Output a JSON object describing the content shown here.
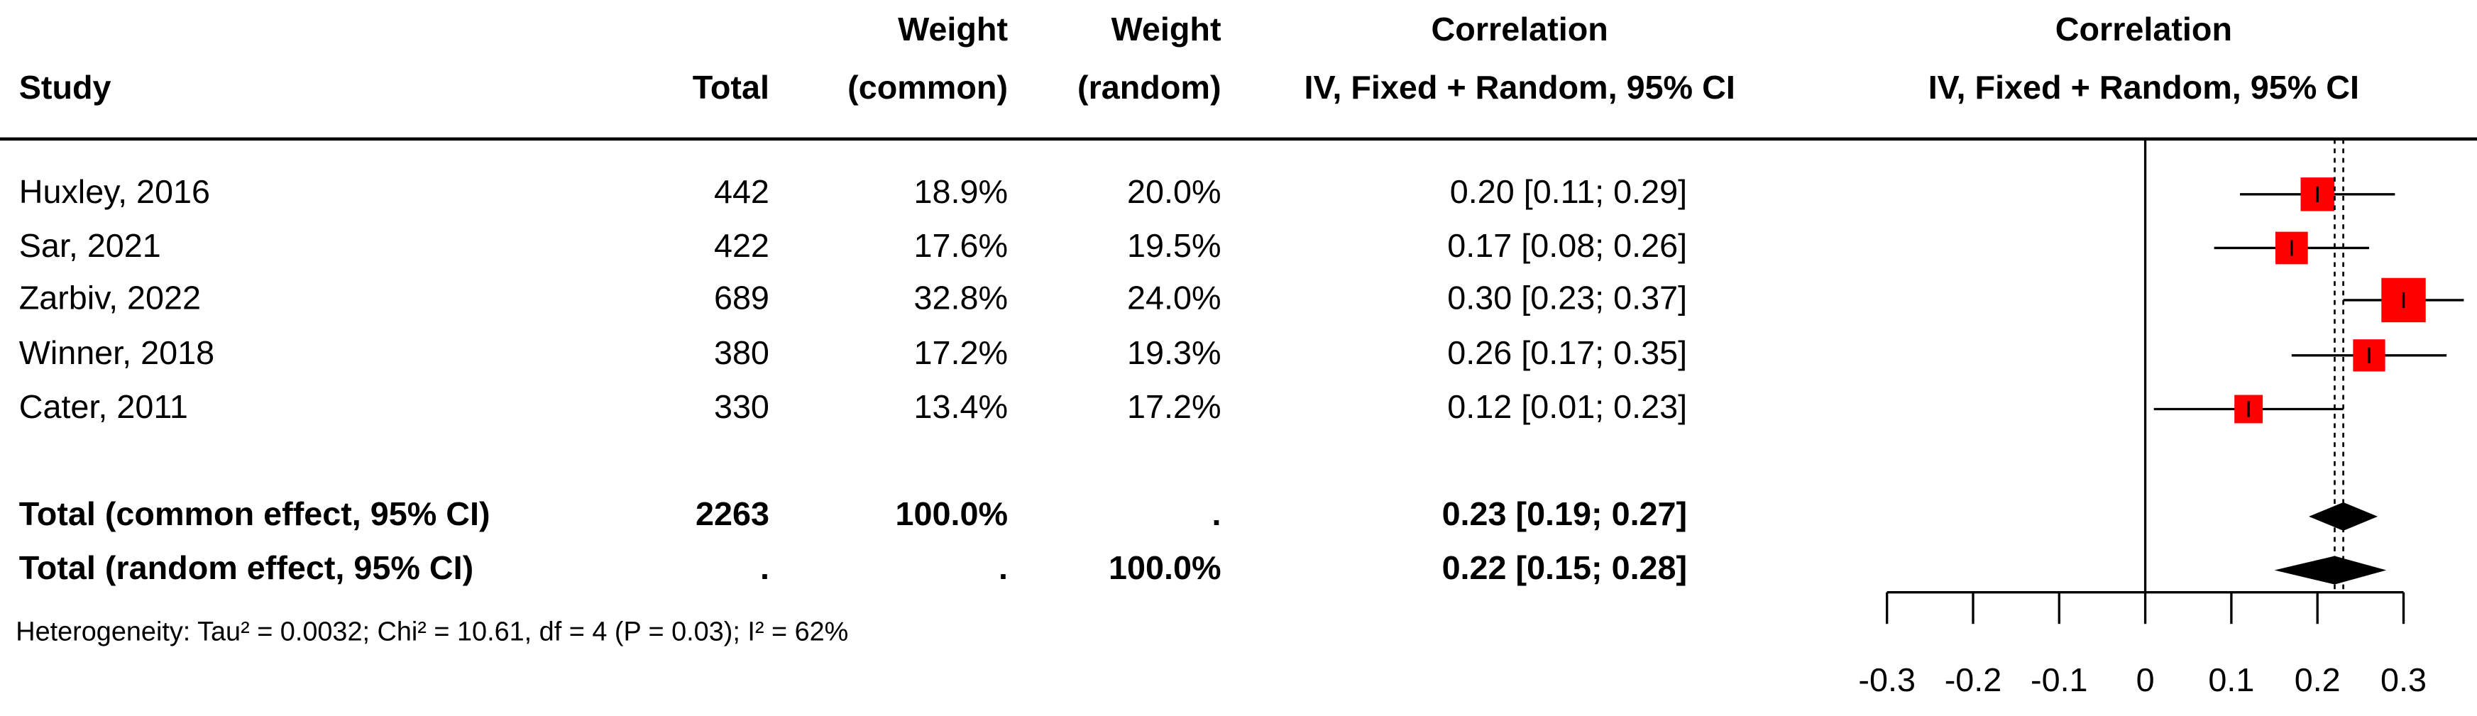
{
  "chart_data": {
    "type": "forest",
    "columns": {
      "study": "Study",
      "total": "Total",
      "weight_common": [
        "Weight",
        "(common)"
      ],
      "weight_random": [
        "Weight",
        "(random)"
      ],
      "ci": [
        "Correlation",
        "IV, Fixed + Random, 95% CI"
      ]
    },
    "plot_header": [
      "Correlation",
      "IV, Fixed + Random, 95% CI"
    ],
    "studies": [
      {
        "name": "Huxley, 2016",
        "total": 442,
        "weight_common": 18.9,
        "weight_common_label": "18.9%",
        "weight_random": 20.0,
        "weight_random_label": "20.0%",
        "estimate": 0.2,
        "lower": 0.11,
        "upper": 0.29,
        "ci_label": "0.20 [0.11; 0.29]"
      },
      {
        "name": "Sar, 2021",
        "total": 422,
        "weight_common": 17.6,
        "weight_common_label": "17.6%",
        "weight_random": 19.5,
        "weight_random_label": "19.5%",
        "estimate": 0.17,
        "lower": 0.08,
        "upper": 0.26,
        "ci_label": "0.17 [0.08; 0.26]"
      },
      {
        "name": "Zarbiv, 2022",
        "total": 689,
        "weight_common": 32.8,
        "weight_common_label": "32.8%",
        "weight_random": 24.0,
        "weight_random_label": "24.0%",
        "estimate": 0.3,
        "lower": 0.23,
        "upper": 0.37,
        "ci_label": "0.30 [0.23; 0.37]"
      },
      {
        "name": "Winner, 2018",
        "total": 380,
        "weight_common": 17.2,
        "weight_common_label": "17.2%",
        "weight_random": 19.3,
        "weight_random_label": "19.3%",
        "estimate": 0.26,
        "lower": 0.17,
        "upper": 0.35,
        "ci_label": "0.26 [0.17; 0.35]"
      },
      {
        "name": "Cater, 2011",
        "total": 330,
        "weight_common": 13.4,
        "weight_common_label": "13.4%",
        "weight_random": 17.2,
        "weight_random_label": "17.2%",
        "estimate": 0.12,
        "lower": 0.01,
        "upper": 0.23,
        "ci_label": "0.12 [0.01; 0.23]"
      }
    ],
    "pooled": [
      {
        "name": "Total (common effect, 95% CI)",
        "total": 2263,
        "weight_common_label": "100.0%",
        "weight_random_label": ".",
        "estimate": 0.23,
        "lower": 0.19,
        "upper": 0.27,
        "ci_label": "0.23 [0.19; 0.27]"
      },
      {
        "name": "Total (random effect, 95% CI)",
        "total": ".",
        "weight_common_label": ".",
        "weight_random_label": "100.0%",
        "estimate": 0.22,
        "lower": 0.15,
        "upper": 0.28,
        "ci_label": "0.22 [0.15; 0.28]"
      }
    ],
    "heterogeneity": "Heterogeneity: Tau² = 0.0032; Chi² = 10.61, df = 4 (P = 0.03); I² = 62%",
    "xlim": [
      -0.3,
      0.3
    ],
    "xticks": [
      -0.3,
      -0.2,
      -0.1,
      0,
      0.1,
      0.2,
      0.3
    ],
    "null_line": 0,
    "square_color": "#ff0000"
  }
}
